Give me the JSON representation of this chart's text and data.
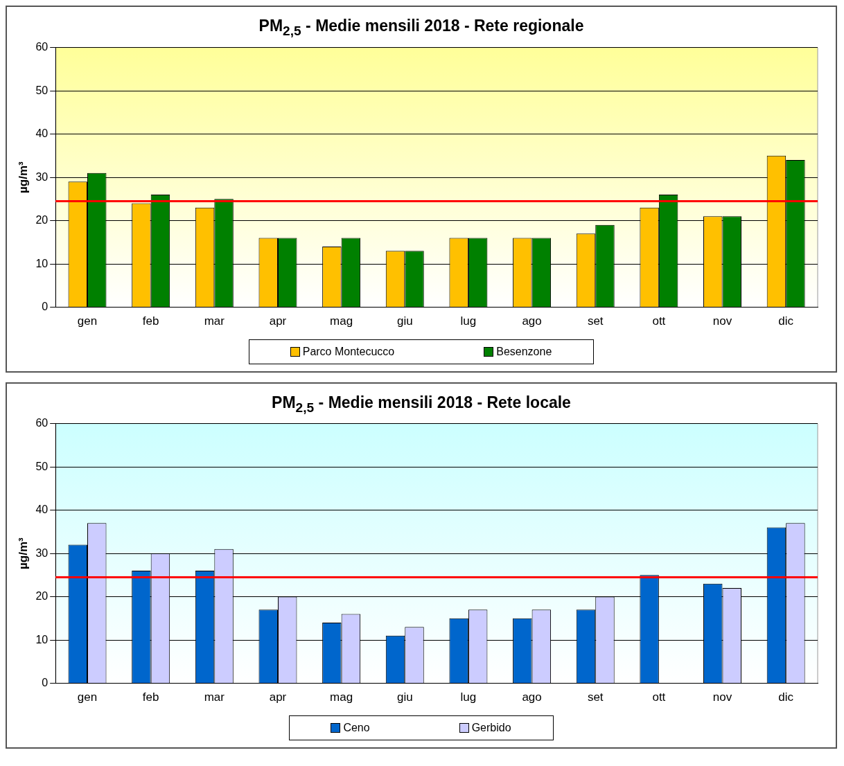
{
  "chart_data": [
    {
      "type": "bar",
      "title": "PM$_{2,5}$ - Medie mensili 2018 - Rete regionale",
      "ylabel": "µg/m³",
      "categories": [
        "gen",
        "feb",
        "mar",
        "apr",
        "mag",
        "giu",
        "lug",
        "ago",
        "set",
        "ott",
        "nov",
        "dic"
      ],
      "series": [
        {
          "name": "Parco Montecucco",
          "color": "#ffc000",
          "values": [
            29,
            24,
            23,
            16,
            14,
            13,
            16,
            16,
            17,
            23,
            21,
            35
          ]
        },
        {
          "name": "Besenzone",
          "color": "#008000",
          "values": [
            31,
            26,
            25,
            16,
            16,
            13,
            16,
            16,
            19,
            26,
            21,
            34
          ]
        }
      ],
      "ylim": [
        0,
        60
      ],
      "yticks": [
        0,
        10,
        20,
        30,
        40,
        50,
        60
      ],
      "grid": "y",
      "legend": "bottom",
      "ref_lines": [
        {
          "axis": "y",
          "value": 24.5,
          "color": "#ff0000"
        }
      ]
    },
    {
      "type": "bar",
      "title": "PM$_{2,5}$ - Medie mensili 2018 - Rete locale",
      "ylabel": "µg/m³",
      "categories": [
        "gen",
        "feb",
        "mar",
        "apr",
        "mag",
        "giu",
        "lug",
        "ago",
        "set",
        "ott",
        "nov",
        "dic"
      ],
      "series": [
        {
          "name": "Ceno",
          "color": "#0066cc",
          "values": [
            32,
            26,
            26,
            17,
            14,
            11,
            15,
            15,
            17,
            25,
            23,
            36
          ]
        },
        {
          "name": "Gerbido",
          "color": "#ccccff",
          "values": [
            37,
            30,
            31,
            20,
            16,
            13,
            17,
            17,
            20,
            null,
            22,
            37
          ]
        }
      ],
      "ylim": [
        0,
        60
      ],
      "yticks": [
        0,
        10,
        20,
        30,
        40,
        50,
        60
      ],
      "grid": "y",
      "legend": "bottom",
      "ref_lines": [
        {
          "axis": "y",
          "value": 24.5,
          "color": "#ff0000"
        }
      ]
    }
  ]
}
